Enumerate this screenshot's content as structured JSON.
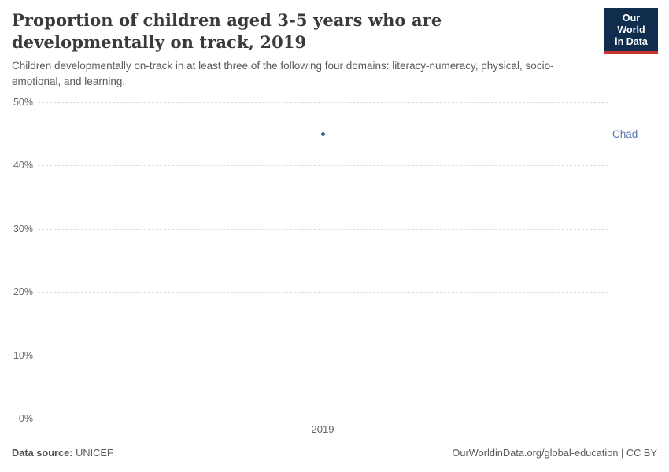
{
  "header": {
    "title": "Proportion of children aged 3-5 years who are developmentally on track, 2019",
    "subtitle": "Children developmentally on-track in at least three of the following four domains: literacy-numeracy, physical, socio-emotional, and learning.",
    "logo": {
      "line1": "Our World",
      "line2": "in Data",
      "bg_color": "#102d4e",
      "accent_color": "#c8332c"
    }
  },
  "chart_data": {
    "type": "scatter",
    "title": "Proportion of children aged 3-5 years who are developmentally on track, 2019",
    "xlabel": "",
    "ylabel": "",
    "x": [
      2019
    ],
    "series": [
      {
        "name": "Chad",
        "values": [
          45
        ]
      }
    ],
    "unit": "%",
    "ylim": [
      0,
      50
    ],
    "yticks": [
      0,
      10,
      20,
      30,
      40,
      50
    ],
    "xticks": [
      "2019"
    ],
    "grid": true,
    "legend_position": "right",
    "point_color": "#3f5e94",
    "label_color": "#5878ae"
  },
  "footer": {
    "source_label": "Data source:",
    "source_value": "UNICEF",
    "credit": "OurWorldinData.org/global-education | CC BY"
  }
}
